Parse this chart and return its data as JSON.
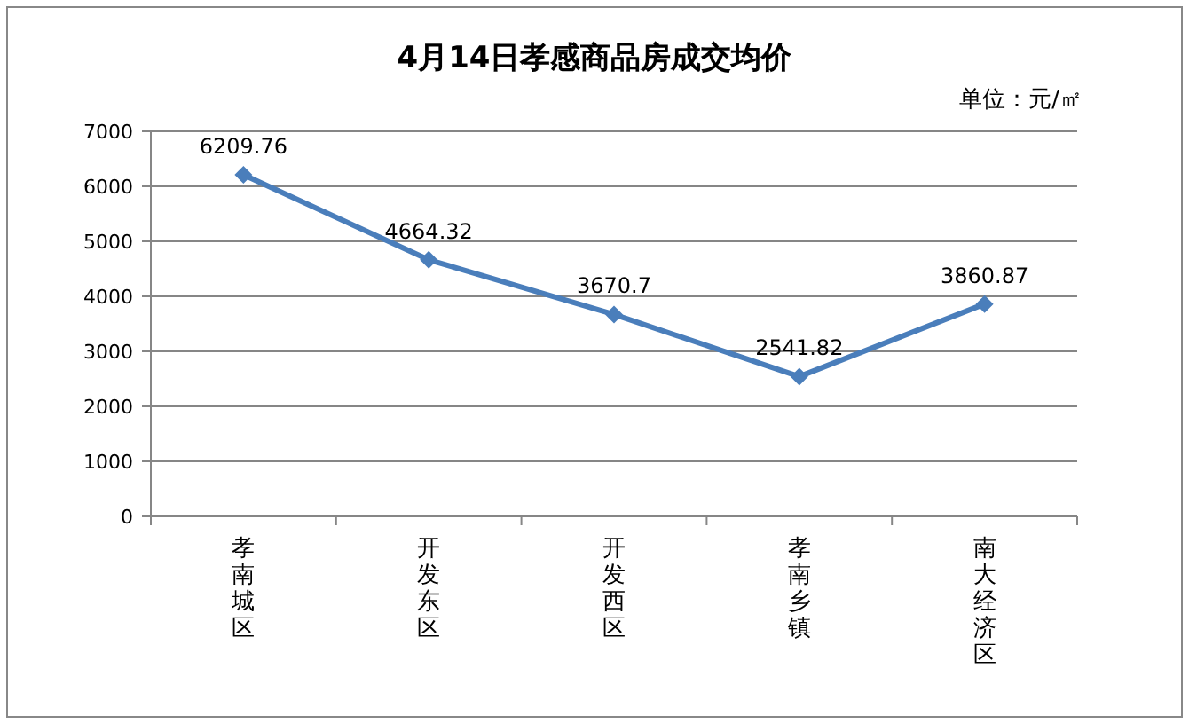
{
  "chart_data": {
    "type": "line",
    "title": "4月14日孝感商品房成交均价",
    "subtitle": "单位：元/㎡",
    "categories": [
      "孝南城区",
      "开发东区",
      "开发西区",
      "孝南乡镇",
      "南大经济区"
    ],
    "series": [
      {
        "color": "#4a7ebb",
        "values": [
          6209.76,
          4664.32,
          3670.7,
          2541.82,
          3860.87
        ]
      }
    ],
    "ylim": [
      0,
      7000
    ],
    "yticks": [
      0,
      1000,
      2000,
      3000,
      4000,
      5000,
      6000,
      7000
    ],
    "grid": "y",
    "marker": "diamond",
    "line_style": "solid",
    "data_labels": true
  }
}
